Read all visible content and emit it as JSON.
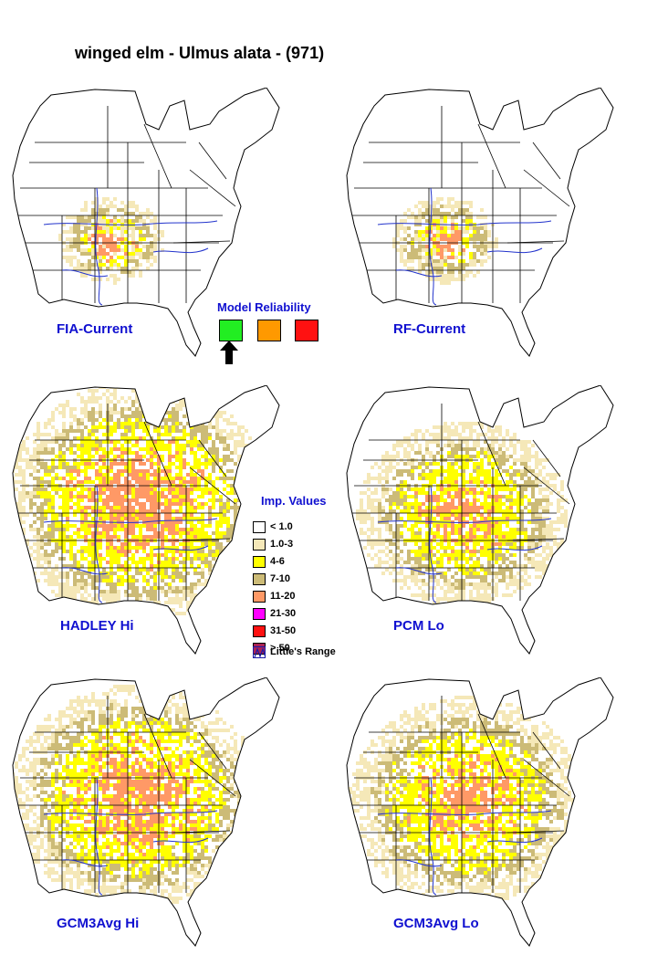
{
  "title": "winged elm - Ulmus alata - (971)",
  "maps": [
    {
      "id": "fia-current",
      "label": "FIA-Current",
      "spread": 0.0,
      "intensity": 0.55
    },
    {
      "id": "rf-current",
      "label": "RF-Current",
      "spread": 0.0,
      "intensity": 0.45
    },
    {
      "id": "hadley-hi",
      "label": "HADLEY Hi",
      "spread": 1.0,
      "intensity": 0.8
    },
    {
      "id": "pcm-lo",
      "label": "PCM Lo",
      "spread": 0.65,
      "intensity": 0.5
    },
    {
      "id": "gcm3avg-hi",
      "label": "GCM3Avg Hi",
      "spread": 0.9,
      "intensity": 0.75
    },
    {
      "id": "gcm3avg-lo",
      "label": "GCM3Avg Lo",
      "spread": 0.8,
      "intensity": 0.6
    }
  ],
  "model_reliability": {
    "title": "Model Reliability",
    "colors": [
      "#22ee22",
      "#ff9900",
      "#ff1111"
    ],
    "selected_index": 0
  },
  "legend": {
    "title": "Imp. Values",
    "items": [
      {
        "label": "< 1.0",
        "color": "#ffffff"
      },
      {
        "label": "1.0-3",
        "color": "#f5e8b8"
      },
      {
        "label": "4-6",
        "color": "#ffff00"
      },
      {
        "label": "7-10",
        "color": "#ccbb77"
      },
      {
        "label": "11-20",
        "color": "#ff9966"
      },
      {
        "label": "21-30",
        "color": "#ff00ff"
      },
      {
        "label": "31-50",
        "color": "#ff1111"
      },
      {
        "label": "> 50",
        "color": "#aa2255"
      }
    ],
    "range_label": "Little's Range"
  }
}
